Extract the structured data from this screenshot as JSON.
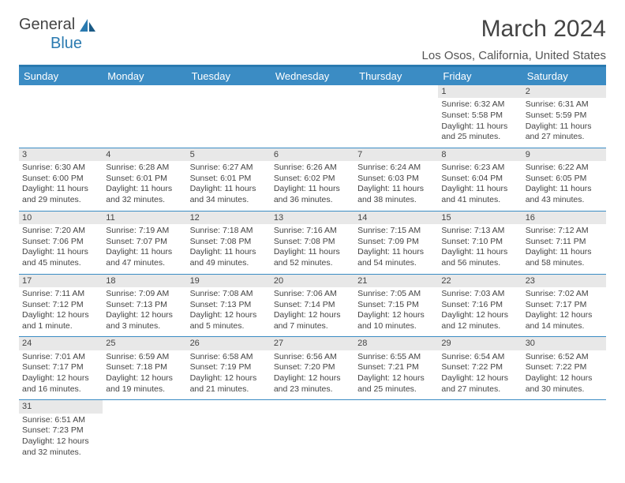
{
  "logo": {
    "text1": "General",
    "text2": "Blue"
  },
  "title": "March 2024",
  "location": "Los Osos, California, United States",
  "colors": {
    "header_bg": "#3b8cc4",
    "header_text": "#ffffff",
    "accent": "#2a7ab0",
    "daynum_bg": "#e8e8e8",
    "text": "#444444"
  },
  "day_headers": [
    "Sunday",
    "Monday",
    "Tuesday",
    "Wednesday",
    "Thursday",
    "Friday",
    "Saturday"
  ],
  "weeks": [
    [
      null,
      null,
      null,
      null,
      null,
      {
        "n": "1",
        "sr": "Sunrise: 6:32 AM",
        "ss": "Sunset: 5:58 PM",
        "d1": "Daylight: 11 hours",
        "d2": "and 25 minutes."
      },
      {
        "n": "2",
        "sr": "Sunrise: 6:31 AM",
        "ss": "Sunset: 5:59 PM",
        "d1": "Daylight: 11 hours",
        "d2": "and 27 minutes."
      }
    ],
    [
      {
        "n": "3",
        "sr": "Sunrise: 6:30 AM",
        "ss": "Sunset: 6:00 PM",
        "d1": "Daylight: 11 hours",
        "d2": "and 29 minutes."
      },
      {
        "n": "4",
        "sr": "Sunrise: 6:28 AM",
        "ss": "Sunset: 6:01 PM",
        "d1": "Daylight: 11 hours",
        "d2": "and 32 minutes."
      },
      {
        "n": "5",
        "sr": "Sunrise: 6:27 AM",
        "ss": "Sunset: 6:01 PM",
        "d1": "Daylight: 11 hours",
        "d2": "and 34 minutes."
      },
      {
        "n": "6",
        "sr": "Sunrise: 6:26 AM",
        "ss": "Sunset: 6:02 PM",
        "d1": "Daylight: 11 hours",
        "d2": "and 36 minutes."
      },
      {
        "n": "7",
        "sr": "Sunrise: 6:24 AM",
        "ss": "Sunset: 6:03 PM",
        "d1": "Daylight: 11 hours",
        "d2": "and 38 minutes."
      },
      {
        "n": "8",
        "sr": "Sunrise: 6:23 AM",
        "ss": "Sunset: 6:04 PM",
        "d1": "Daylight: 11 hours",
        "d2": "and 41 minutes."
      },
      {
        "n": "9",
        "sr": "Sunrise: 6:22 AM",
        "ss": "Sunset: 6:05 PM",
        "d1": "Daylight: 11 hours",
        "d2": "and 43 minutes."
      }
    ],
    [
      {
        "n": "10",
        "sr": "Sunrise: 7:20 AM",
        "ss": "Sunset: 7:06 PM",
        "d1": "Daylight: 11 hours",
        "d2": "and 45 minutes."
      },
      {
        "n": "11",
        "sr": "Sunrise: 7:19 AM",
        "ss": "Sunset: 7:07 PM",
        "d1": "Daylight: 11 hours",
        "d2": "and 47 minutes."
      },
      {
        "n": "12",
        "sr": "Sunrise: 7:18 AM",
        "ss": "Sunset: 7:08 PM",
        "d1": "Daylight: 11 hours",
        "d2": "and 49 minutes."
      },
      {
        "n": "13",
        "sr": "Sunrise: 7:16 AM",
        "ss": "Sunset: 7:08 PM",
        "d1": "Daylight: 11 hours",
        "d2": "and 52 minutes."
      },
      {
        "n": "14",
        "sr": "Sunrise: 7:15 AM",
        "ss": "Sunset: 7:09 PM",
        "d1": "Daylight: 11 hours",
        "d2": "and 54 minutes."
      },
      {
        "n": "15",
        "sr": "Sunrise: 7:13 AM",
        "ss": "Sunset: 7:10 PM",
        "d1": "Daylight: 11 hours",
        "d2": "and 56 minutes."
      },
      {
        "n": "16",
        "sr": "Sunrise: 7:12 AM",
        "ss": "Sunset: 7:11 PM",
        "d1": "Daylight: 11 hours",
        "d2": "and 58 minutes."
      }
    ],
    [
      {
        "n": "17",
        "sr": "Sunrise: 7:11 AM",
        "ss": "Sunset: 7:12 PM",
        "d1": "Daylight: 12 hours",
        "d2": "and 1 minute."
      },
      {
        "n": "18",
        "sr": "Sunrise: 7:09 AM",
        "ss": "Sunset: 7:13 PM",
        "d1": "Daylight: 12 hours",
        "d2": "and 3 minutes."
      },
      {
        "n": "19",
        "sr": "Sunrise: 7:08 AM",
        "ss": "Sunset: 7:13 PM",
        "d1": "Daylight: 12 hours",
        "d2": "and 5 minutes."
      },
      {
        "n": "20",
        "sr": "Sunrise: 7:06 AM",
        "ss": "Sunset: 7:14 PM",
        "d1": "Daylight: 12 hours",
        "d2": "and 7 minutes."
      },
      {
        "n": "21",
        "sr": "Sunrise: 7:05 AM",
        "ss": "Sunset: 7:15 PM",
        "d1": "Daylight: 12 hours",
        "d2": "and 10 minutes."
      },
      {
        "n": "22",
        "sr": "Sunrise: 7:03 AM",
        "ss": "Sunset: 7:16 PM",
        "d1": "Daylight: 12 hours",
        "d2": "and 12 minutes."
      },
      {
        "n": "23",
        "sr": "Sunrise: 7:02 AM",
        "ss": "Sunset: 7:17 PM",
        "d1": "Daylight: 12 hours",
        "d2": "and 14 minutes."
      }
    ],
    [
      {
        "n": "24",
        "sr": "Sunrise: 7:01 AM",
        "ss": "Sunset: 7:17 PM",
        "d1": "Daylight: 12 hours",
        "d2": "and 16 minutes."
      },
      {
        "n": "25",
        "sr": "Sunrise: 6:59 AM",
        "ss": "Sunset: 7:18 PM",
        "d1": "Daylight: 12 hours",
        "d2": "and 19 minutes."
      },
      {
        "n": "26",
        "sr": "Sunrise: 6:58 AM",
        "ss": "Sunset: 7:19 PM",
        "d1": "Daylight: 12 hours",
        "d2": "and 21 minutes."
      },
      {
        "n": "27",
        "sr": "Sunrise: 6:56 AM",
        "ss": "Sunset: 7:20 PM",
        "d1": "Daylight: 12 hours",
        "d2": "and 23 minutes."
      },
      {
        "n": "28",
        "sr": "Sunrise: 6:55 AM",
        "ss": "Sunset: 7:21 PM",
        "d1": "Daylight: 12 hours",
        "d2": "and 25 minutes."
      },
      {
        "n": "29",
        "sr": "Sunrise: 6:54 AM",
        "ss": "Sunset: 7:22 PM",
        "d1": "Daylight: 12 hours",
        "d2": "and 27 minutes."
      },
      {
        "n": "30",
        "sr": "Sunrise: 6:52 AM",
        "ss": "Sunset: 7:22 PM",
        "d1": "Daylight: 12 hours",
        "d2": "and 30 minutes."
      }
    ],
    [
      {
        "n": "31",
        "sr": "Sunrise: 6:51 AM",
        "ss": "Sunset: 7:23 PM",
        "d1": "Daylight: 12 hours",
        "d2": "and 32 minutes."
      },
      null,
      null,
      null,
      null,
      null,
      null
    ]
  ]
}
